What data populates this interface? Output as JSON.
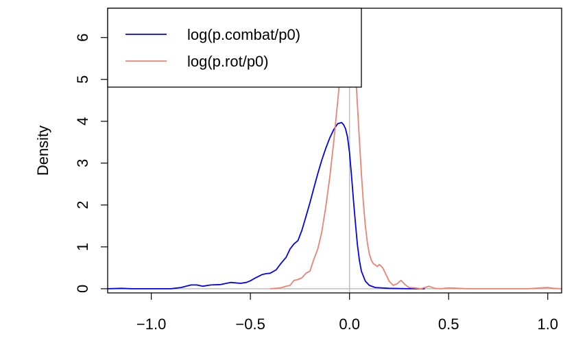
{
  "chart_data": {
    "type": "line",
    "title": "",
    "xlabel": "",
    "ylabel": "Density",
    "xlim": [
      -1.22,
      1.07
    ],
    "ylim": [
      -0.1,
      6.7
    ],
    "x_ticks": [
      -1.0,
      -0.5,
      0.0,
      0.5,
      1.0
    ],
    "x_tick_labels": [
      "−1.0",
      "−0.5",
      "0.0",
      "0.5",
      "1.0"
    ],
    "y_ticks": [
      0,
      1,
      2,
      3,
      4,
      5,
      6
    ],
    "y_tick_labels": [
      "0",
      "1",
      "2",
      "3",
      "4",
      "5",
      "6"
    ],
    "reference_lines": {
      "vertical_x": 0.0,
      "horizontal_y": 0.0,
      "color": "#bebebe"
    },
    "grid": false,
    "legend": {
      "position": "top-left"
    },
    "series": [
      {
        "name": "log(p.combat/p0)",
        "color": "#0000ee",
        "x": [
          -1.22,
          -1.15,
          -1.1,
          -1.0,
          -0.9,
          -0.85,
          -0.8,
          -0.77,
          -0.74,
          -0.7,
          -0.65,
          -0.6,
          -0.55,
          -0.52,
          -0.5,
          -0.47,
          -0.44,
          -0.42,
          -0.4,
          -0.37,
          -0.35,
          -0.32,
          -0.3,
          -0.28,
          -0.26,
          -0.24,
          -0.22,
          -0.2,
          -0.18,
          -0.16,
          -0.14,
          -0.12,
          -0.1,
          -0.08,
          -0.06,
          -0.04,
          -0.03,
          -0.02,
          -0.01,
          0.0,
          0.01,
          0.02,
          0.03,
          0.04,
          0.05,
          0.06,
          0.08,
          0.1,
          0.13,
          0.2,
          0.3,
          0.38
        ],
        "y": [
          0.0,
          0.01,
          0.0,
          0.0,
          0.0,
          0.03,
          0.09,
          0.09,
          0.06,
          0.09,
          0.1,
          0.15,
          0.13,
          0.15,
          0.19,
          0.27,
          0.34,
          0.36,
          0.37,
          0.45,
          0.58,
          0.75,
          0.95,
          1.07,
          1.15,
          1.4,
          1.72,
          2.05,
          2.4,
          2.75,
          3.07,
          3.35,
          3.6,
          3.8,
          3.94,
          3.97,
          3.92,
          3.82,
          3.62,
          3.25,
          2.7,
          2.1,
          1.55,
          1.05,
          0.68,
          0.42,
          0.18,
          0.08,
          0.03,
          0.01,
          0.0,
          0.0
        ]
      },
      {
        "name": "log(p.rot/p0)",
        "color": "#f08070",
        "x": [
          -0.4,
          -0.35,
          -0.32,
          -0.3,
          -0.28,
          -0.26,
          -0.24,
          -0.22,
          -0.2,
          -0.18,
          -0.16,
          -0.14,
          -0.12,
          -0.1,
          -0.08,
          -0.06,
          -0.05,
          -0.04,
          -0.03,
          -0.02,
          -0.01,
          0.0,
          0.01,
          0.02,
          0.03,
          0.04,
          0.05,
          0.06,
          0.07,
          0.08,
          0.09,
          0.1,
          0.11,
          0.12,
          0.13,
          0.14,
          0.15,
          0.16,
          0.17,
          0.18,
          0.2,
          0.22,
          0.24,
          0.26,
          0.28,
          0.3,
          0.33,
          0.36,
          0.4,
          0.43,
          0.46,
          0.5,
          0.6,
          0.7,
          0.8,
          0.9,
          0.97,
          1.0,
          1.03,
          1.07
        ],
        "y": [
          0.0,
          0.02,
          0.06,
          0.08,
          0.2,
          0.22,
          0.26,
          0.37,
          0.42,
          0.7,
          0.95,
          1.35,
          1.95,
          2.65,
          3.5,
          4.45,
          4.95,
          5.35,
          5.75,
          6.1,
          6.4,
          6.48,
          6.3,
          5.85,
          5.2,
          4.4,
          3.55,
          2.75,
          2.05,
          1.5,
          1.1,
          0.83,
          0.68,
          0.6,
          0.57,
          0.53,
          0.58,
          0.54,
          0.48,
          0.38,
          0.18,
          0.08,
          0.12,
          0.2,
          0.1,
          0.03,
          0.02,
          0.0,
          0.06,
          0.01,
          0.0,
          0.02,
          0.0,
          0.0,
          0.0,
          0.0,
          0.02,
          0.03,
          0.01,
          0.0
        ]
      }
    ]
  }
}
